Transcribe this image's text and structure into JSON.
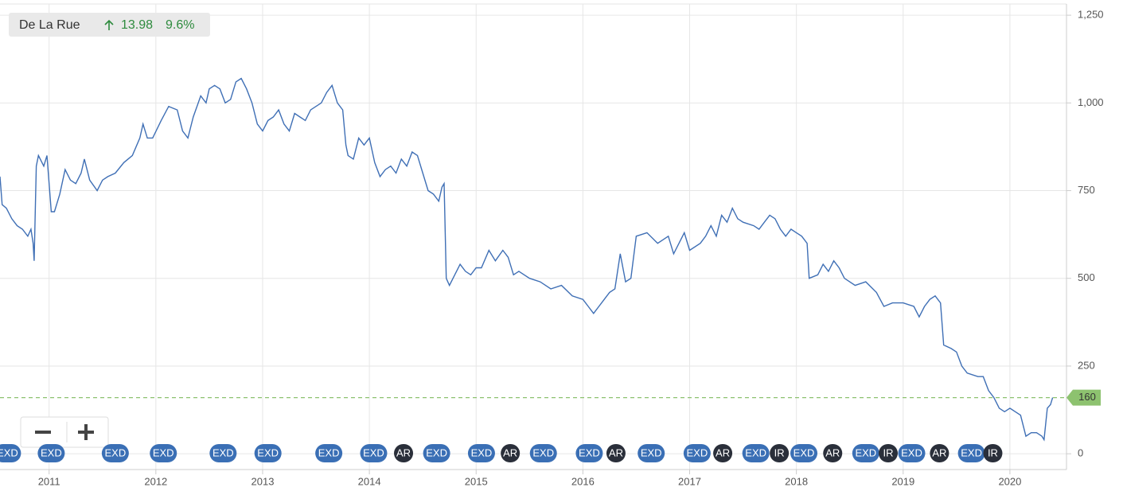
{
  "chart_data": {
    "type": "line",
    "name": "De La Rue",
    "change": 13.98,
    "change_pct": "9.6%",
    "last": 160,
    "color": "#3f6fb5",
    "last_color": "#8dc26f",
    "grid": true,
    "xlim": [
      2010.54,
      2020.53
    ],
    "ylim": [
      -45,
      1282
    ],
    "xticks": [
      2011,
      2012,
      2013,
      2014,
      2015,
      2016,
      2017,
      2018,
      2019,
      2020
    ],
    "yticks": [
      0,
      250,
      500,
      750,
      {
        "value": 1000,
        "label": "1,000"
      },
      {
        "value": 1250,
        "label": "1,250"
      }
    ],
    "x": [
      2010.54,
      2010.56,
      2010.6,
      2010.65,
      2010.7,
      2010.75,
      2010.8,
      2010.83,
      2010.85,
      2010.86,
      2010.88,
      2010.9,
      2010.95,
      2010.98,
      2011.02,
      2011.05,
      2011.1,
      2011.15,
      2011.2,
      2011.25,
      2011.3,
      2011.33,
      2011.38,
      2011.45,
      2011.5,
      2011.55,
      2011.62,
      2011.7,
      2011.78,
      2011.85,
      2011.88,
      2011.92,
      2011.97,
      2012.05,
      2012.12,
      2012.2,
      2012.25,
      2012.3,
      2012.35,
      2012.42,
      2012.47,
      2012.5,
      2012.55,
      2012.6,
      2012.65,
      2012.7,
      2012.75,
      2012.8,
      2012.85,
      2012.9,
      2012.95,
      2013.0,
      2013.05,
      2013.1,
      2013.15,
      2013.2,
      2013.25,
      2013.3,
      2013.35,
      2013.4,
      2013.45,
      2013.55,
      2013.6,
      2013.65,
      2013.7,
      2013.75,
      2013.78,
      2013.8,
      2013.85,
      2013.9,
      2013.95,
      2014.0,
      2014.05,
      2014.1,
      2014.15,
      2014.2,
      2014.25,
      2014.3,
      2014.35,
      2014.4,
      2014.45,
      2014.5,
      2014.55,
      2014.6,
      2014.65,
      2014.68,
      2014.7,
      2014.72,
      2014.75,
      2014.8,
      2014.85,
      2014.9,
      2014.95,
      2015.0,
      2015.05,
      2015.12,
      2015.18,
      2015.25,
      2015.3,
      2015.35,
      2015.4,
      2015.5,
      2015.6,
      2015.7,
      2015.8,
      2015.9,
      2016.0,
      2016.05,
      2016.1,
      2016.15,
      2016.2,
      2016.25,
      2016.3,
      2016.35,
      2016.4,
      2016.45,
      2016.5,
      2016.6,
      2016.7,
      2016.8,
      2016.85,
      2016.9,
      2016.95,
      2017.0,
      2017.1,
      2017.15,
      2017.2,
      2017.25,
      2017.3,
      2017.35,
      2017.4,
      2017.45,
      2017.5,
      2017.6,
      2017.65,
      2017.7,
      2017.75,
      2017.8,
      2017.85,
      2017.9,
      2017.95,
      2018.0,
      2018.05,
      2018.1,
      2018.12,
      2018.2,
      2018.25,
      2018.3,
      2018.35,
      2018.4,
      2018.45,
      2018.55,
      2018.65,
      2018.75,
      2018.82,
      2018.9,
      2019.0,
      2019.1,
      2019.15,
      2019.2,
      2019.25,
      2019.3,
      2019.35,
      2019.38,
      2019.45,
      2019.5,
      2019.55,
      2019.6,
      2019.7,
      2019.75,
      2019.8,
      2019.85,
      2019.9,
      2019.95,
      2020.0,
      2020.05,
      2020.1,
      2020.15,
      2020.2,
      2020.25,
      2020.3,
      2020.32,
      2020.35,
      2020.38,
      2020.4
    ],
    "values": [
      790,
      710,
      700,
      670,
      650,
      640,
      620,
      640,
      600,
      550,
      820,
      850,
      820,
      850,
      690,
      690,
      740,
      810,
      780,
      770,
      800,
      840,
      780,
      750,
      780,
      790,
      800,
      830,
      850,
      900,
      940,
      900,
      900,
      950,
      990,
      980,
      920,
      900,
      960,
      1020,
      1000,
      1040,
      1050,
      1040,
      1000,
      1010,
      1060,
      1070,
      1040,
      1000,
      940,
      920,
      950,
      960,
      980,
      940,
      920,
      970,
      960,
      950,
      980,
      1000,
      1030,
      1050,
      1000,
      980,
      880,
      850,
      840,
      900,
      880,
      900,
      830,
      790,
      810,
      820,
      800,
      840,
      820,
      860,
      850,
      800,
      750,
      740,
      720,
      760,
      770,
      500,
      480,
      510,
      540,
      520,
      510,
      530,
      530,
      580,
      550,
      580,
      560,
      510,
      520,
      500,
      490,
      470,
      480,
      450,
      440,
      420,
      400,
      420,
      440,
      460,
      470,
      570,
      490,
      500,
      620,
      630,
      600,
      620,
      570,
      600,
      630,
      580,
      600,
      620,
      650,
      620,
      680,
      660,
      700,
      670,
      660,
      650,
      640,
      660,
      680,
      670,
      640,
      620,
      640,
      630,
      620,
      600,
      500,
      510,
      540,
      520,
      550,
      530,
      500,
      480,
      490,
      460,
      420,
      430,
      430,
      420,
      390,
      420,
      440,
      450,
      430,
      310,
      300,
      290,
      250,
      230,
      220,
      220,
      180,
      160,
      130,
      120,
      130,
      120,
      110,
      50,
      60,
      60,
      50,
      40,
      130,
      140,
      160
    ],
    "events": [
      {
        "x": 2010.61,
        "label": "EXD"
      },
      {
        "x": 2011.02,
        "label": "EXD"
      },
      {
        "x": 2011.62,
        "label": "EXD"
      },
      {
        "x": 2012.07,
        "label": "EXD"
      },
      {
        "x": 2012.63,
        "label": "EXD"
      },
      {
        "x": 2013.05,
        "label": "EXD"
      },
      {
        "x": 2013.62,
        "label": "EXD"
      },
      {
        "x": 2014.04,
        "label": "EXD"
      },
      {
        "x": 2014.32,
        "label": "AR"
      },
      {
        "x": 2014.63,
        "label": "EXD"
      },
      {
        "x": 2015.05,
        "label": "EXD"
      },
      {
        "x": 2015.32,
        "label": "AR"
      },
      {
        "x": 2015.63,
        "label": "EXD"
      },
      {
        "x": 2016.06,
        "label": "EXD"
      },
      {
        "x": 2016.31,
        "label": "AR"
      },
      {
        "x": 2016.64,
        "label": "EXD"
      },
      {
        "x": 2017.07,
        "label": "EXD"
      },
      {
        "x": 2017.31,
        "label": "AR"
      },
      {
        "x": 2017.62,
        "label": "EXD"
      },
      {
        "x": 2017.84,
        "label": "IR"
      },
      {
        "x": 2018.07,
        "label": "EXD"
      },
      {
        "x": 2018.34,
        "label": "AR"
      },
      {
        "x": 2018.65,
        "label": "EXD"
      },
      {
        "x": 2018.86,
        "label": "IR"
      },
      {
        "x": 2019.08,
        "label": "EXD"
      },
      {
        "x": 2019.34,
        "label": "AR"
      },
      {
        "x": 2019.64,
        "label": "EXD"
      },
      {
        "x": 2019.84,
        "label": "IR"
      }
    ]
  }
}
